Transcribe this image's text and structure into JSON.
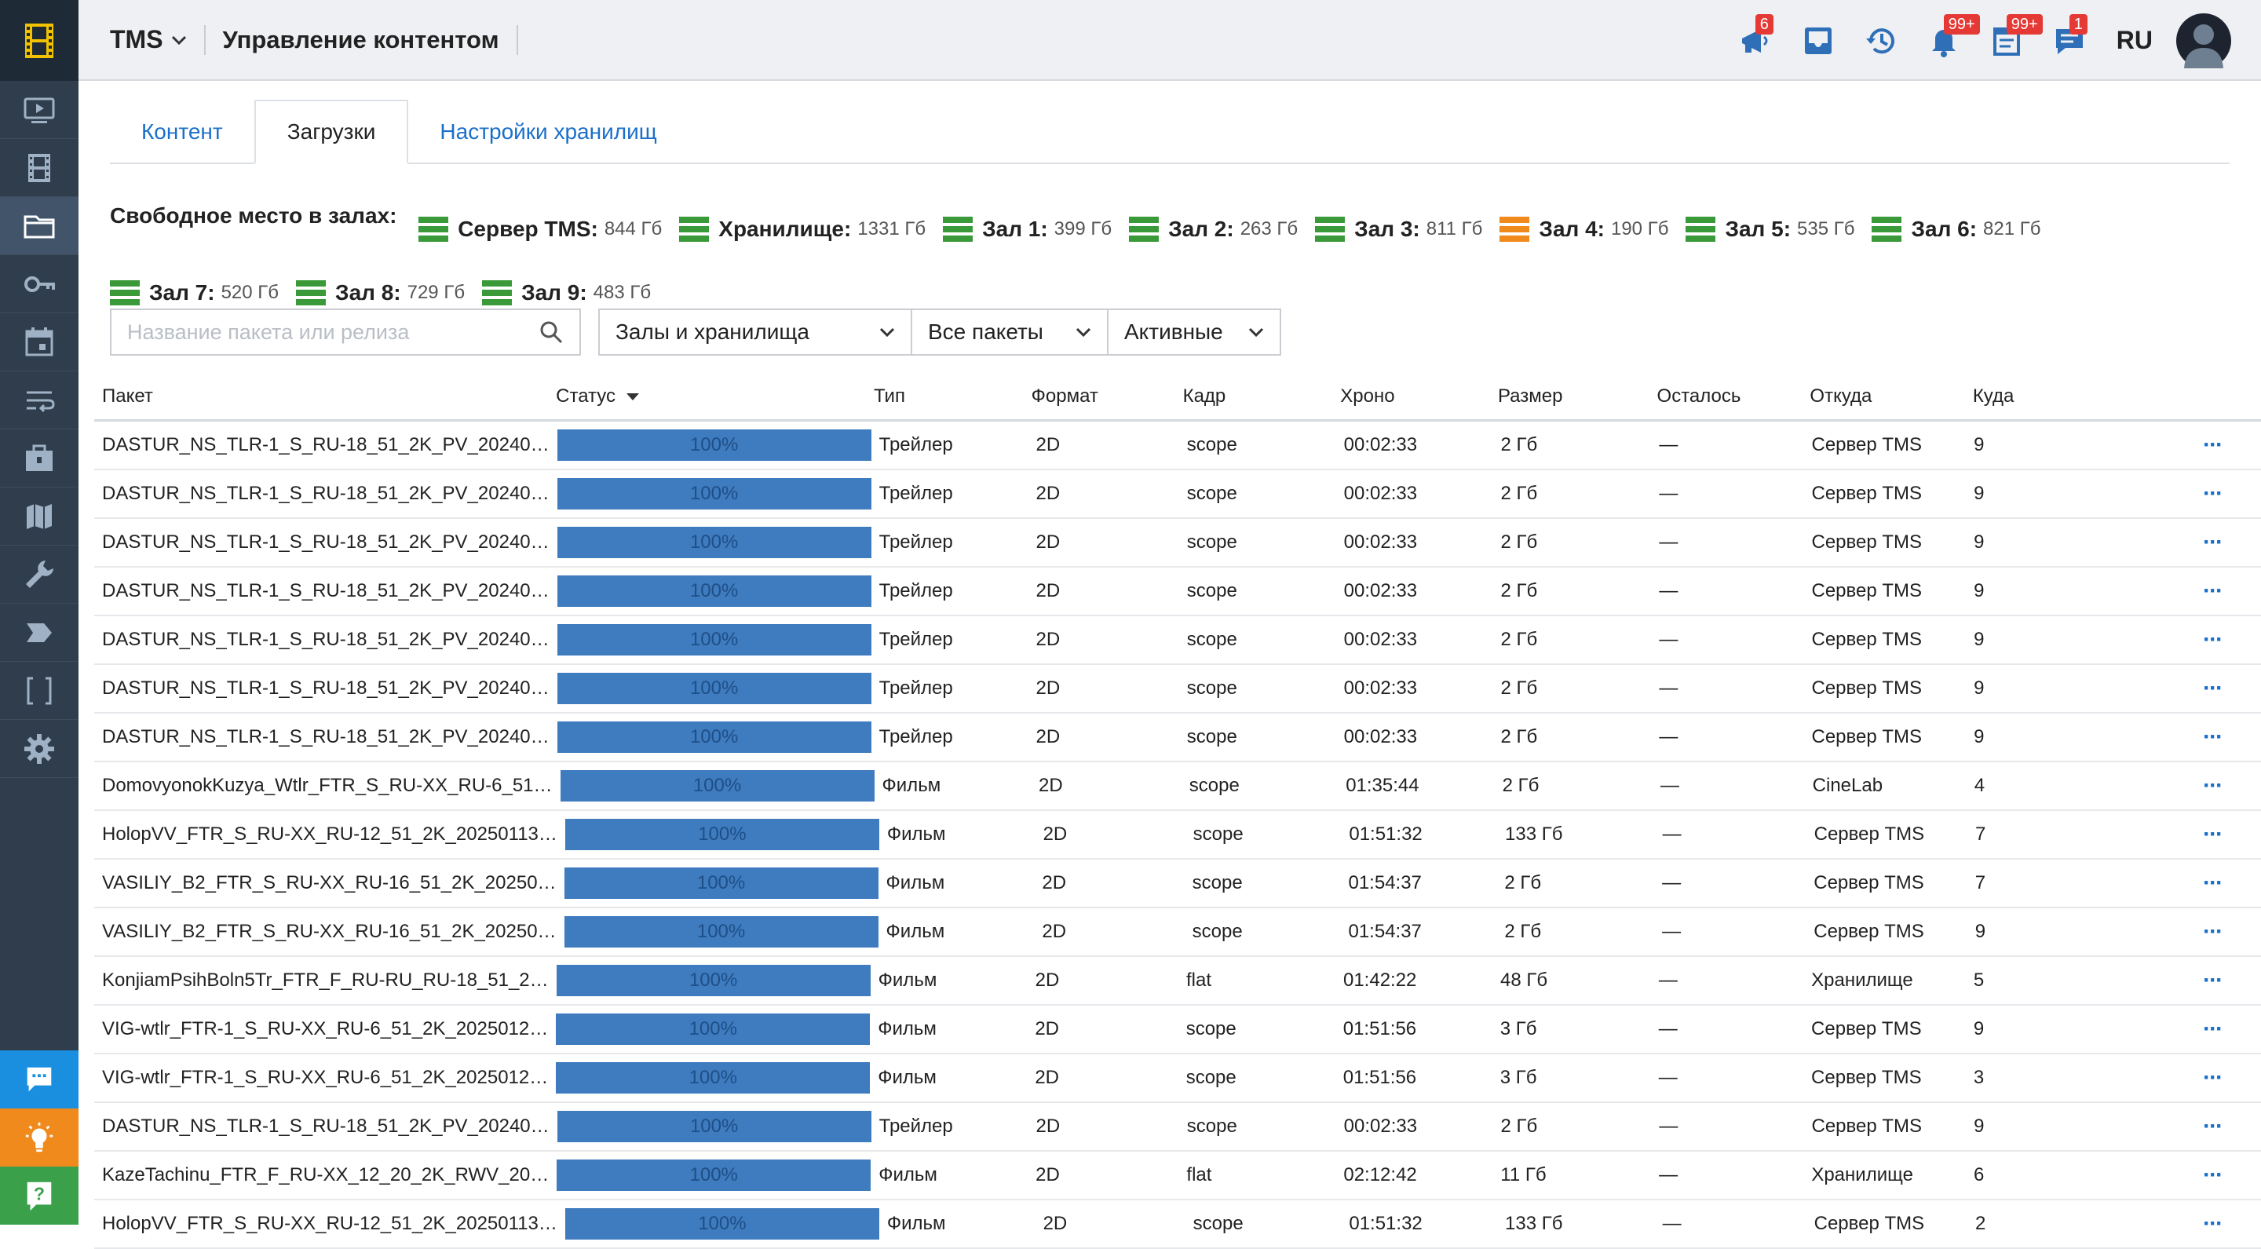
{
  "header": {
    "app_name": "TMS",
    "page_title": "Управление контентом",
    "lang": "RU",
    "badges": {
      "megaphone": "6",
      "bell": "99+",
      "tasks": "99+",
      "chat": "1"
    }
  },
  "colors": {
    "accent": "#1a6fc9",
    "progress": "#3e7bbf",
    "ok": "#3a9a3a",
    "warn": "#f08a1c",
    "sidebar": "#2f3d4d"
  },
  "sidebar": {
    "items": [
      {
        "icon": "player-icon"
      },
      {
        "icon": "film-icon"
      },
      {
        "icon": "folder-icon",
        "active": true
      },
      {
        "icon": "key-icon"
      },
      {
        "icon": "calendar-icon"
      },
      {
        "icon": "playlist-icon"
      },
      {
        "icon": "briefcase-icon"
      },
      {
        "icon": "map-icon"
      },
      {
        "icon": "wrench-icon"
      },
      {
        "icon": "tag-icon"
      },
      {
        "icon": "brackets-icon"
      },
      {
        "icon": "gear-icon"
      }
    ],
    "bottom": [
      {
        "icon": "chat-icon"
      },
      {
        "icon": "bulb-icon"
      },
      {
        "icon": "help-icon"
      }
    ]
  },
  "tabs": [
    {
      "label": "Контент"
    },
    {
      "label": "Загрузки",
      "active": true
    },
    {
      "label": "Настройки хранилищ"
    }
  ],
  "space": {
    "title": "Свободное место в залах:",
    "items": [
      {
        "name": "Сервер TMS:",
        "value": "844 Гб",
        "status": "ok"
      },
      {
        "name": "Хранилище:",
        "value": "1331 Гб",
        "status": "ok"
      },
      {
        "name": "Зал 1:",
        "value": "399 Гб",
        "status": "ok"
      },
      {
        "name": "Зал 2:",
        "value": "263 Гб",
        "status": "ok"
      },
      {
        "name": "Зал 3:",
        "value": "811 Гб",
        "status": "ok"
      },
      {
        "name": "Зал 4:",
        "value": "190 Гб",
        "status": "warn"
      },
      {
        "name": "Зал 5:",
        "value": "535 Гб",
        "status": "ok"
      },
      {
        "name": "Зал 6:",
        "value": "821 Гб",
        "status": "ok"
      },
      {
        "name": "Зал 7:",
        "value": "520 Гб",
        "status": "ok"
      },
      {
        "name": "Зал 8:",
        "value": "729 Гб",
        "status": "ok"
      },
      {
        "name": "Зал 9:",
        "value": "483 Гб",
        "status": "ok"
      }
    ]
  },
  "filters": {
    "search_placeholder": "Название пакета или релиза",
    "halls": "Залы и хранилища",
    "packages": "Все пакеты",
    "state": "Активные"
  },
  "table": {
    "headers": {
      "package": "Пакет",
      "status": "Статус",
      "type": "Тип",
      "format": "Формат",
      "frame": "Кадр",
      "duration": "Хроно",
      "size": "Размер",
      "left": "Осталось",
      "from": "Откуда",
      "to": "Куда"
    },
    "rows": [
      {
        "package": "DASTUR_NS_TLR-1_S_RU-18_51_2K_PV_20240…",
        "progress": "100%",
        "type": "Трейлер",
        "format": "2D",
        "frame": "scope",
        "duration": "00:02:33",
        "size": "2 Гб",
        "left": "—",
        "from": "Сервер TMS",
        "to": "9"
      },
      {
        "package": "DASTUR_NS_TLR-1_S_RU-18_51_2K_PV_20240…",
        "progress": "100%",
        "type": "Трейлер",
        "format": "2D",
        "frame": "scope",
        "duration": "00:02:33",
        "size": "2 Гб",
        "left": "—",
        "from": "Сервер TMS",
        "to": "9"
      },
      {
        "package": "DASTUR_NS_TLR-1_S_RU-18_51_2K_PV_20240…",
        "progress": "100%",
        "type": "Трейлер",
        "format": "2D",
        "frame": "scope",
        "duration": "00:02:33",
        "size": "2 Гб",
        "left": "—",
        "from": "Сервер TMS",
        "to": "9"
      },
      {
        "package": "DASTUR_NS_TLR-1_S_RU-18_51_2K_PV_20240…",
        "progress": "100%",
        "type": "Трейлер",
        "format": "2D",
        "frame": "scope",
        "duration": "00:02:33",
        "size": "2 Гб",
        "left": "—",
        "from": "Сервер TMS",
        "to": "9"
      },
      {
        "package": "DASTUR_NS_TLR-1_S_RU-18_51_2K_PV_20240…",
        "progress": "100%",
        "type": "Трейлер",
        "format": "2D",
        "frame": "scope",
        "duration": "00:02:33",
        "size": "2 Гб",
        "left": "—",
        "from": "Сервер TMS",
        "to": "9"
      },
      {
        "package": "DASTUR_NS_TLR-1_S_RU-18_51_2K_PV_20240…",
        "progress": "100%",
        "type": "Трейлер",
        "format": "2D",
        "frame": "scope",
        "duration": "00:02:33",
        "size": "2 Гб",
        "left": "—",
        "from": "Сервер TMS",
        "to": "9"
      },
      {
        "package": "DASTUR_NS_TLR-1_S_RU-18_51_2K_PV_20240…",
        "progress": "100%",
        "type": "Трейлер",
        "format": "2D",
        "frame": "scope",
        "duration": "00:02:33",
        "size": "2 Гб",
        "left": "—",
        "from": "Сервер TMS",
        "to": "9"
      },
      {
        "package": "DomovyonokKuzya_Wtlr_FTR_S_RU-XX_RU-6_51…",
        "progress": "100%",
        "type": "Фильм",
        "format": "2D",
        "frame": "scope",
        "duration": "01:35:44",
        "size": "2 Гб",
        "left": "—",
        "from": "CineLab",
        "to": "4"
      },
      {
        "package": "HolopVV_FTR_S_RU-XX_RU-12_51_2K_20250113…",
        "progress": "100%",
        "type": "Фильм",
        "format": "2D",
        "frame": "scope",
        "duration": "01:51:32",
        "size": "133 Гб",
        "left": "—",
        "from": "Сервер TMS",
        "to": "7"
      },
      {
        "package": "VASILIY_B2_FTR_S_RU-XX_RU-16_51_2K_20250…",
        "progress": "100%",
        "type": "Фильм",
        "format": "2D",
        "frame": "scope",
        "duration": "01:54:37",
        "size": "2 Гб",
        "left": "—",
        "from": "Сервер TMS",
        "to": "7"
      },
      {
        "package": "VASILIY_B2_FTR_S_RU-XX_RU-16_51_2K_20250…",
        "progress": "100%",
        "type": "Фильм",
        "format": "2D",
        "frame": "scope",
        "duration": "01:54:37",
        "size": "2 Гб",
        "left": "—",
        "from": "Сервер TMS",
        "to": "9"
      },
      {
        "package": "KonjiamPsihBoln5Tr_FTR_F_RU-RU_RU-18_51_2…",
        "progress": "100%",
        "type": "Фильм",
        "format": "2D",
        "frame": "flat",
        "duration": "01:42:22",
        "size": "48 Гб",
        "left": "—",
        "from": "Хранилище",
        "to": "5"
      },
      {
        "package": "VIG-wtlr_FTR-1_S_RU-XX_RU-6_51_2K_2025012…",
        "progress": "100%",
        "type": "Фильм",
        "format": "2D",
        "frame": "scope",
        "duration": "01:51:56",
        "size": "3 Гб",
        "left": "—",
        "from": "Сервер TMS",
        "to": "9"
      },
      {
        "package": "VIG-wtlr_FTR-1_S_RU-XX_RU-6_51_2K_2025012…",
        "progress": "100%",
        "type": "Фильм",
        "format": "2D",
        "frame": "scope",
        "duration": "01:51:56",
        "size": "3 Гб",
        "left": "—",
        "from": "Сервер TMS",
        "to": "3"
      },
      {
        "package": "DASTUR_NS_TLR-1_S_RU-18_51_2K_PV_20240…",
        "progress": "100%",
        "type": "Трейлер",
        "format": "2D",
        "frame": "scope",
        "duration": "00:02:33",
        "size": "2 Гб",
        "left": "—",
        "from": "Сервер TMS",
        "to": "9"
      },
      {
        "package": "KazeTachinu_FTR_F_RU-XX_12_20_2K_RWV_20…",
        "progress": "100%",
        "type": "Фильм",
        "format": "2D",
        "frame": "flat",
        "duration": "02:12:42",
        "size": "11 Гб",
        "left": "—",
        "from": "Хранилище",
        "to": "6"
      },
      {
        "package": "HolopVV_FTR_S_RU-XX_RU-12_51_2K_20250113…",
        "progress": "100%",
        "type": "Фильм",
        "format": "2D",
        "frame": "scope",
        "duration": "01:51:32",
        "size": "133 Гб",
        "left": "—",
        "from": "Сервер TMS",
        "to": "2"
      }
    ]
  }
}
